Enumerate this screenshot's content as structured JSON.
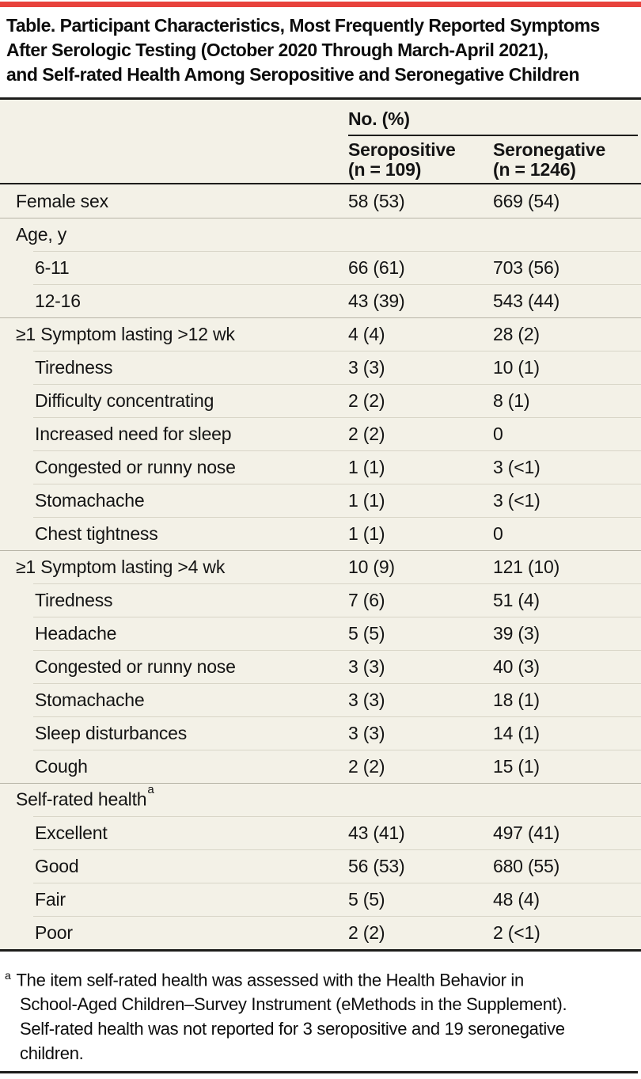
{
  "colors": {
    "accent_red": "#e8423c",
    "table_background": "#f3f1e7",
    "dark_rule": "#1d1d1b",
    "light_rule_full": "#b7b4a7",
    "light_rule_indented": "#d8d5c7",
    "text": "#0d0d0d"
  },
  "title_lines": [
    "Table. Participant Characteristics, Most Frequently Reported Symptoms",
    "After Serologic Testing (October 2020 Through March-April 2021),",
    "and Self-rated Health Among Seropositive and Seronegative Children"
  ],
  "table": {
    "group_header": "No. (%)",
    "columns": [
      {
        "label": "Seropositive",
        "sublabel": "(n = 109)"
      },
      {
        "label": "Seronegative",
        "sublabel": "(n = 1246)"
      }
    ],
    "rows": [
      {
        "label": "Female sex",
        "indent": false,
        "seropositive": "58 (53)",
        "seronegative": "669 (54)"
      },
      {
        "label": "Age, y",
        "indent": false,
        "seropositive": "",
        "seronegative": ""
      },
      {
        "label": "6-11",
        "indent": true,
        "seropositive": "66 (61)",
        "seronegative": "703 (56)"
      },
      {
        "label": "12-16",
        "indent": true,
        "seropositive": "43 (39)",
        "seronegative": "543 (44)"
      },
      {
        "label": "≥1 Symptom lasting >12 wk",
        "indent": false,
        "seropositive": "4 (4)",
        "seronegative": "28 (2)"
      },
      {
        "label": "Tiredness",
        "indent": true,
        "seropositive": "3 (3)",
        "seronegative": "10 (1)"
      },
      {
        "label": "Difficulty concentrating",
        "indent": true,
        "seropositive": "2 (2)",
        "seronegative": "8 (1)"
      },
      {
        "label": "Increased need for sleep",
        "indent": true,
        "seropositive": "2 (2)",
        "seronegative": "0"
      },
      {
        "label": "Congested or runny nose",
        "indent": true,
        "seropositive": "1 (1)",
        "seronegative": "3 (<1)"
      },
      {
        "label": "Stomachache",
        "indent": true,
        "seropositive": "1 (1)",
        "seronegative": "3 (<1)"
      },
      {
        "label": "Chest tightness",
        "indent": true,
        "seropositive": "1 (1)",
        "seronegative": "0"
      },
      {
        "label": "≥1 Symptom lasting >4 wk",
        "indent": false,
        "seropositive": "10 (9)",
        "seronegative": "121 (10)"
      },
      {
        "label": "Tiredness",
        "indent": true,
        "seropositive": "7 (6)",
        "seronegative": "51 (4)"
      },
      {
        "label": "Headache",
        "indent": true,
        "seropositive": "5 (5)",
        "seronegative": "39 (3)"
      },
      {
        "label": "Congested or runny nose",
        "indent": true,
        "seropositive": "3 (3)",
        "seronegative": "40 (3)"
      },
      {
        "label": "Stomachache",
        "indent": true,
        "seropositive": "3 (3)",
        "seronegative": "18 (1)"
      },
      {
        "label": "Sleep disturbances",
        "indent": true,
        "seropositive": "3 (3)",
        "seronegative": "14 (1)"
      },
      {
        "label": "Cough",
        "indent": true,
        "seropositive": "2 (2)",
        "seronegative": "15 (1)"
      },
      {
        "label": "Self-rated health",
        "sup": "a",
        "indent": false,
        "seropositive": "",
        "seronegative": ""
      },
      {
        "label": "Excellent",
        "indent": true,
        "seropositive": "43 (41)",
        "seronegative": "497 (41)"
      },
      {
        "label": "Good",
        "indent": true,
        "seropositive": "56 (53)",
        "seronegative": "680 (55)"
      },
      {
        "label": "Fair",
        "indent": true,
        "seropositive": "5 (5)",
        "seronegative": "48 (4)"
      },
      {
        "label": "Poor",
        "indent": true,
        "seropositive": "2 (2)",
        "seronegative": "2 (<1)"
      }
    ]
  },
  "footnote": {
    "marker": "a",
    "lines": [
      "The item self-rated health was assessed with the Health Behavior in",
      "School-Aged Children–Survey Instrument (eMethods in the Supplement).",
      "Self-rated health was not reported for 3 seropositive and 19 seronegative",
      "children."
    ]
  }
}
